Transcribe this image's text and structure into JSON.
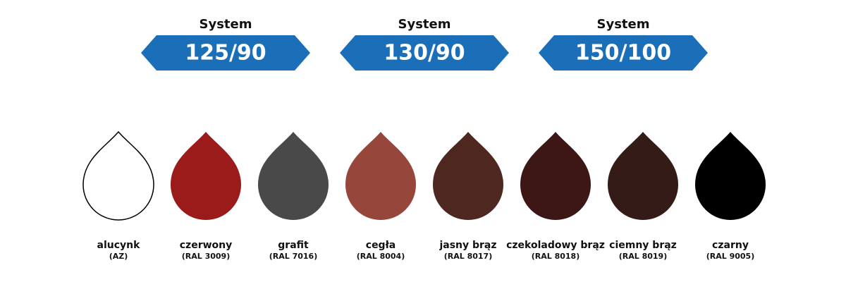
{
  "systems": [
    {
      "label": "System",
      "value": "125/90"
    },
    {
      "label": "System",
      "value": "130/90"
    },
    {
      "label": "System",
      "value": "150/100"
    }
  ],
  "swatches": [
    {
      "name": "alucynk",
      "code": "(AZ)",
      "color": "#ffffff"
    },
    {
      "name": "czerwony",
      "code": "(RAL 3009)",
      "color": "#9b1b1b"
    },
    {
      "name": "grafit",
      "code": "(RAL 7016)",
      "color": "#4a4949"
    },
    {
      "name": "cegła",
      "code": "(RAL 8004)",
      "color": "#96463a"
    },
    {
      "name": "jasny brąz",
      "code": "(RAL 8017)",
      "color": "#4d2720"
    },
    {
      "name": "czekoladowy brąz",
      "code": "(RAL 8018)",
      "color": "#3d1616"
    },
    {
      "name": "ciemny brąz",
      "code": "(RAL 8019)",
      "color": "#351b18"
    },
    {
      "name": "czarny",
      "code": "(RAL 9005)",
      "color": "#000000"
    }
  ]
}
